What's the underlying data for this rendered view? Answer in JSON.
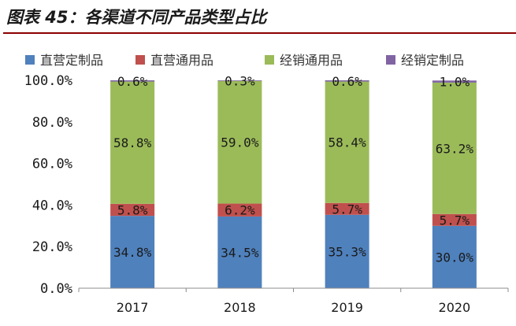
{
  "figure_title": "图表 45：各渠道不同产品类型占比",
  "chart_data": {
    "type": "bar",
    "stacked": true,
    "categories": [
      "2017",
      "2018",
      "2019",
      "2020"
    ],
    "series": [
      {
        "name": "直营定制品",
        "color": "#4f81bd",
        "values": [
          34.8,
          34.5,
          35.3,
          30.0
        ],
        "labels": [
          "34.8%",
          "34.5%",
          "35.3%",
          "30.0%"
        ]
      },
      {
        "name": "直营通用品",
        "color": "#c0504d",
        "values": [
          5.8,
          6.2,
          5.7,
          5.7
        ],
        "labels": [
          "5.8%",
          "6.2%",
          "5.7%",
          "5.7%"
        ]
      },
      {
        "name": "经销通用品",
        "color": "#9bbb59",
        "values": [
          58.8,
          59.0,
          58.4,
          63.2
        ],
        "labels": [
          "58.8%",
          "59.0%",
          "58.4%",
          "63.2%"
        ]
      },
      {
        "name": "经销定制品",
        "color": "#8064a2",
        "values": [
          0.6,
          0.3,
          0.6,
          1.0
        ],
        "labels": [
          "0.6%",
          "0.3%",
          "0.6%",
          "1.0%"
        ]
      }
    ],
    "ylim": [
      0,
      100
    ],
    "yticks": [
      0,
      20,
      40,
      60,
      80,
      100
    ],
    "ytick_labels": [
      "0.0%",
      "20.0%",
      "40.0%",
      "60.0%",
      "80.0%",
      "100.0%"
    ],
    "legend_position": "top",
    "grid": false
  }
}
